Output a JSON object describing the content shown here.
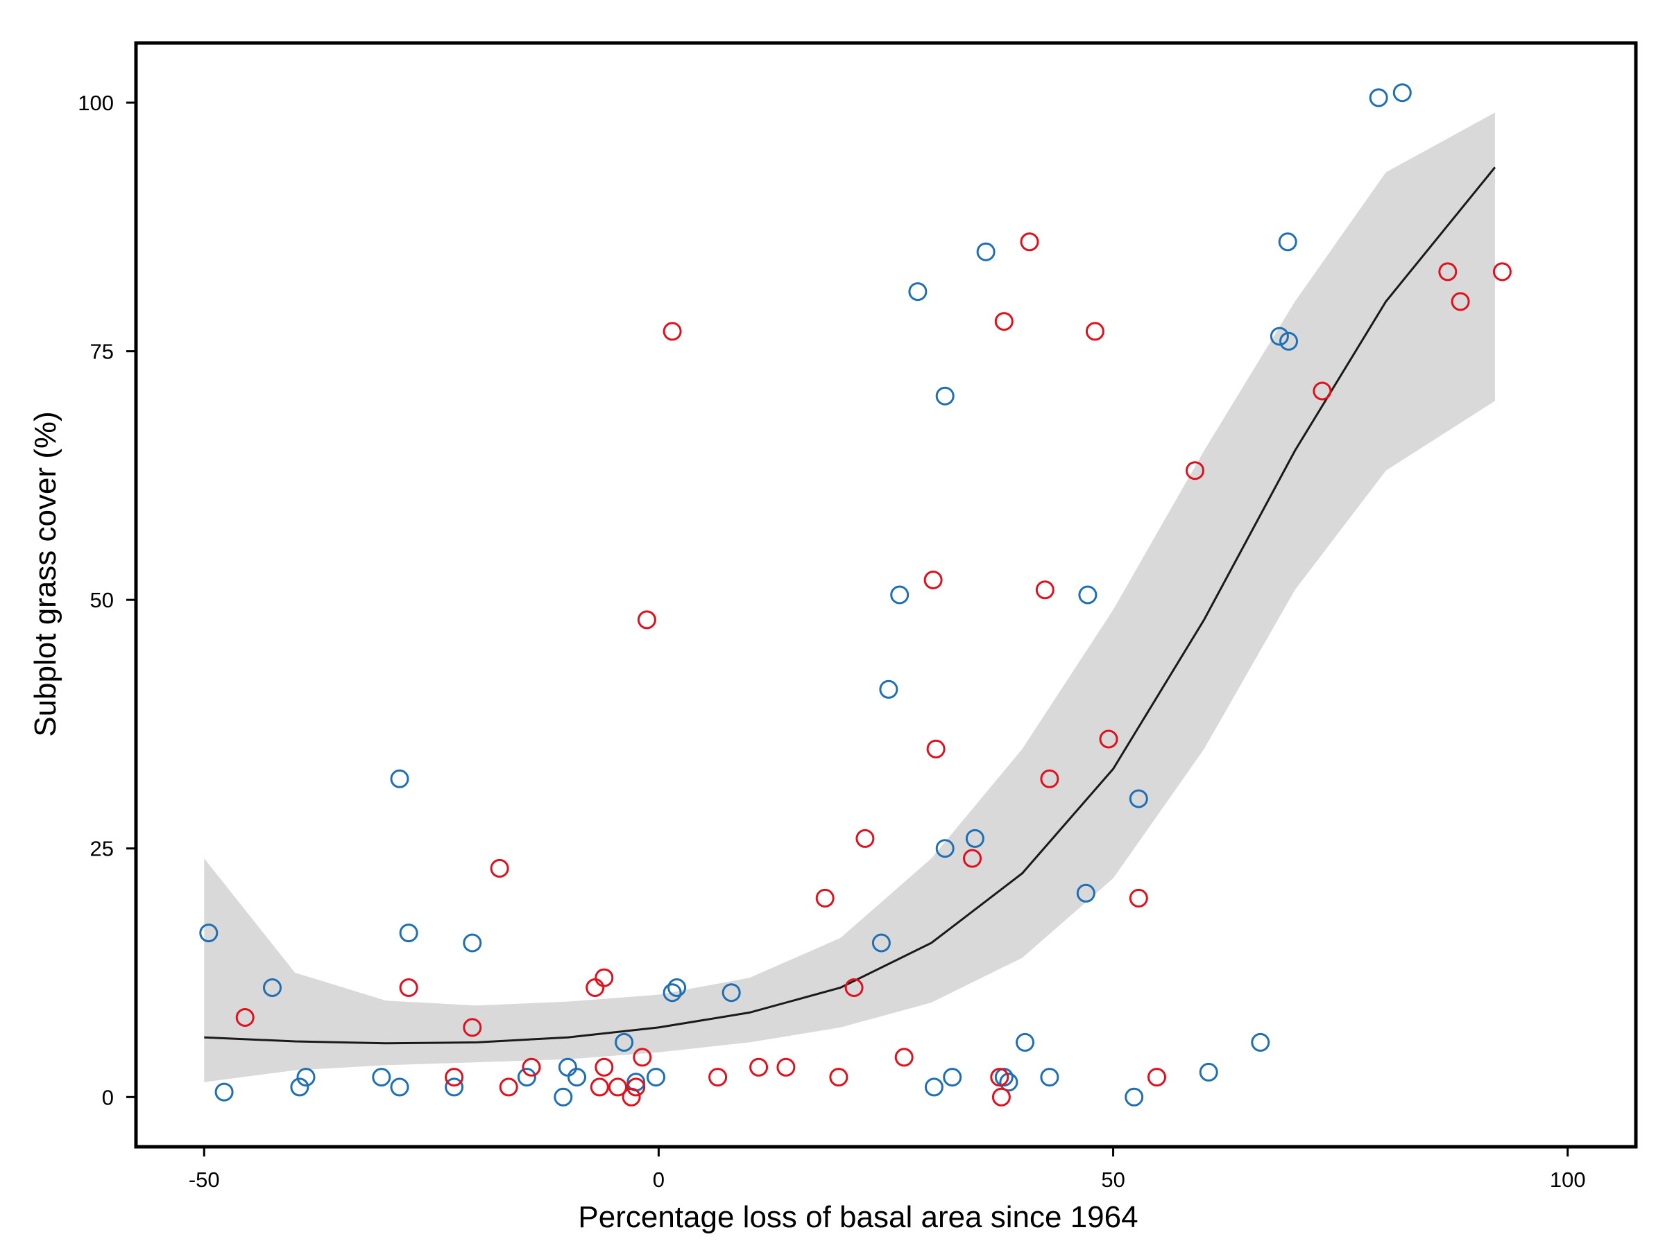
{
  "chart_data": {
    "type": "scatter",
    "title": "",
    "xlabel": "Percentage loss of basal area since 1964",
    "ylabel": "Subplot grass cover (%)",
    "xlim": [
      -57.5,
      107.5
    ],
    "ylim": [
      -5,
      106
    ],
    "xticks": [
      -50,
      0,
      50,
      100
    ],
    "yticks": [
      0,
      25,
      50,
      75,
      100
    ],
    "grid": false,
    "legend": "none",
    "colors": {
      "series_blue": "#1f6fb4",
      "series_red": "#e0101c",
      "fit_line": "#1a1a1a",
      "ci_band": "#d9d9d9",
      "frame": "#000000"
    },
    "series": [
      {
        "color": "blue",
        "points": [
          [
            -49.5,
            16.5
          ],
          [
            -47.8,
            0.5
          ],
          [
            -42.5,
            11
          ],
          [
            -39.5,
            1
          ],
          [
            -38.8,
            2
          ],
          [
            -30.5,
            2
          ],
          [
            -28.5,
            1
          ],
          [
            -28.5,
            32
          ],
          [
            -27.5,
            16.5
          ],
          [
            -22.5,
            1
          ],
          [
            -20.5,
            15.5
          ],
          [
            -14.5,
            2
          ],
          [
            -10.5,
            0
          ],
          [
            -10,
            3
          ],
          [
            -9,
            2
          ],
          [
            -3.8,
            5.5
          ],
          [
            -2.5,
            1.5
          ],
          [
            -0.3,
            2
          ],
          [
            1.5,
            10.5
          ],
          [
            2,
            11
          ],
          [
            8,
            10.5
          ],
          [
            24.5,
            15.5
          ],
          [
            25.3,
            41
          ],
          [
            26.5,
            50.5
          ],
          [
            28.5,
            81
          ],
          [
            30.3,
            1
          ],
          [
            31.5,
            70.5
          ],
          [
            31.5,
            25
          ],
          [
            32.3,
            2
          ],
          [
            34.8,
            26
          ],
          [
            36,
            85
          ],
          [
            38,
            2
          ],
          [
            38.5,
            1.5
          ],
          [
            40.3,
            5.5
          ],
          [
            43,
            2
          ],
          [
            47,
            20.5
          ],
          [
            47.2,
            50.5
          ],
          [
            52.3,
            0
          ],
          [
            52.8,
            30
          ],
          [
            60.5,
            2.5
          ],
          [
            66.2,
            5.5
          ],
          [
            68.3,
            76.5
          ],
          [
            69.2,
            86
          ],
          [
            69.3,
            76
          ],
          [
            79.2,
            100.5
          ],
          [
            81.8,
            101
          ]
        ]
      },
      {
        "color": "red",
        "points": [
          [
            -45.5,
            8
          ],
          [
            -27.5,
            11
          ],
          [
            -22.5,
            2
          ],
          [
            -20.5,
            7
          ],
          [
            -17.5,
            23
          ],
          [
            -16.5,
            1
          ],
          [
            -14,
            3
          ],
          [
            -7,
            11
          ],
          [
            -6.5,
            1
          ],
          [
            -6,
            12
          ],
          [
            -6,
            3
          ],
          [
            -4.5,
            1
          ],
          [
            -3,
            0
          ],
          [
            -2.5,
            1
          ],
          [
            -1.8,
            4
          ],
          [
            -1.3,
            48
          ],
          [
            1.5,
            77
          ],
          [
            6.5,
            2
          ],
          [
            11,
            3
          ],
          [
            14,
            3
          ],
          [
            18.3,
            20
          ],
          [
            19.8,
            2
          ],
          [
            21.5,
            11
          ],
          [
            22.7,
            26
          ],
          [
            27,
            4
          ],
          [
            30.2,
            52
          ],
          [
            30.5,
            35
          ],
          [
            34.5,
            24
          ],
          [
            37.5,
            2
          ],
          [
            37.7,
            0
          ],
          [
            38,
            78
          ],
          [
            40.8,
            86
          ],
          [
            42.5,
            51
          ],
          [
            43,
            32
          ],
          [
            48,
            77
          ],
          [
            49.5,
            36
          ],
          [
            52.8,
            20
          ],
          [
            54.8,
            2
          ],
          [
            59,
            63
          ],
          [
            73,
            71
          ],
          [
            86.8,
            83
          ],
          [
            88.2,
            80
          ],
          [
            92.8,
            83
          ]
        ]
      }
    ],
    "fit": {
      "x": [
        -50,
        -40,
        -30,
        -20,
        -10,
        0,
        10,
        20,
        30,
        40,
        50,
        60,
        70,
        80,
        92
      ],
      "y": [
        6,
        5.6,
        5.4,
        5.5,
        6,
        7,
        8.5,
        11,
        15.5,
        22.5,
        33,
        48,
        65,
        80,
        93.5
      ],
      "ci_low": [
        1.5,
        2.7,
        3.2,
        3.5,
        3.8,
        4.5,
        5.5,
        7,
        9.5,
        14,
        22,
        35,
        51,
        63,
        70
      ],
      "ci_high": [
        24,
        12.5,
        9.7,
        9.2,
        9.6,
        10.3,
        12,
        16,
        24,
        35,
        49,
        65,
        80,
        93,
        99
      ]
    }
  }
}
